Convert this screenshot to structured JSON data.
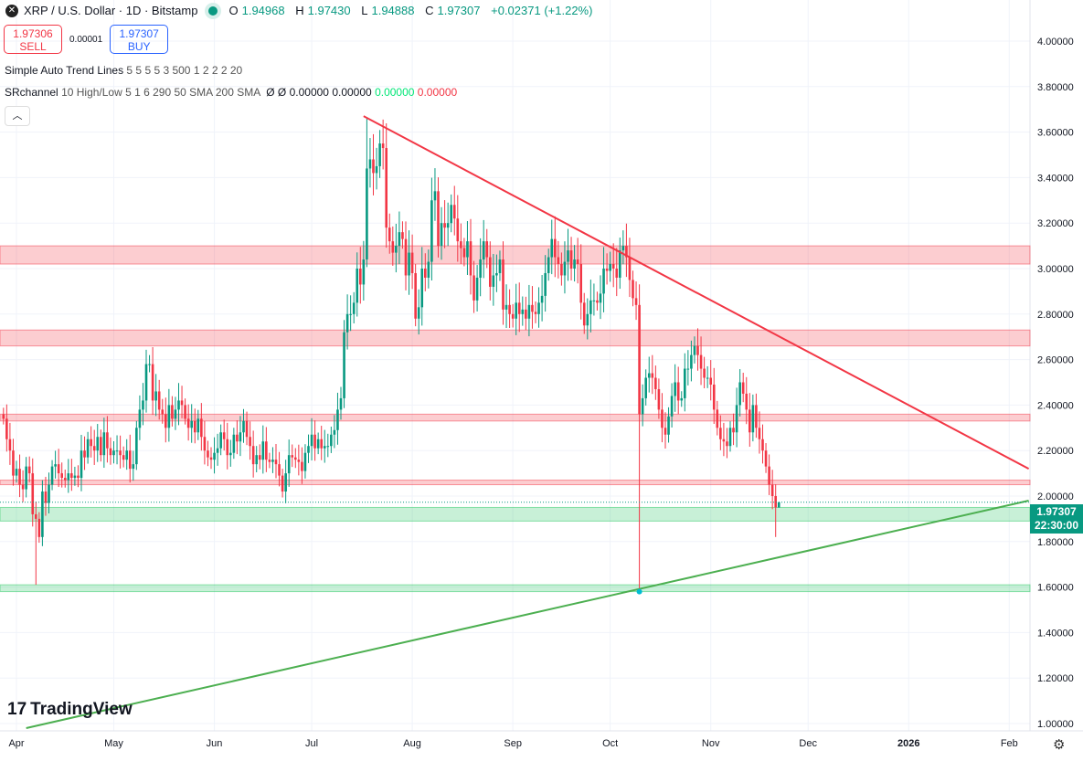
{
  "header": {
    "symbol": "XRP / U.S. Dollar · 1D · Bitstamp",
    "o_label": "O",
    "o": "1.94968",
    "h_label": "H",
    "h": "1.97430",
    "l_label": "L",
    "l": "1.94888",
    "c_label": "C",
    "c": "1.97307",
    "change": "+0.02371 (+1.22%)"
  },
  "trade": {
    "sell_price": "1.97306",
    "sell_label": "SELL",
    "spread": "0.00001",
    "buy_price": "1.97307",
    "buy_label": "BUY"
  },
  "indicators": [
    {
      "name": "Simple Auto Trend Lines",
      "params": "5 5 5 5 3 500 1 2 2 2 20"
    },
    {
      "name": "SRchannel",
      "params": "10 High/Low 5 1 6 290 50 SMA 200 SMA",
      "v1": "Ø",
      "v2": "Ø",
      "v3": "0.00000",
      "v4": "0.00000",
      "v5": "0.00000",
      "v6": "0.00000"
    }
  ],
  "branding": "TradingView",
  "last_price": {
    "price": "1.97307",
    "countdown": "22:30:00"
  },
  "colors": {
    "up": "#089981",
    "down": "#F23645",
    "resistance_zone": "#F23645",
    "support_zone": "#22c55e",
    "red_trendline": "#F23645",
    "green_trendline": "#4caf50"
  },
  "chart_data": {
    "type": "candlestick",
    "price_ticks": [
      "4.00000",
      "3.80000",
      "3.60000",
      "3.40000",
      "3.20000",
      "3.00000",
      "2.80000",
      "2.60000",
      "2.40000",
      "2.20000",
      "2.00000",
      "1.80000",
      "1.60000",
      "1.40000",
      "1.20000",
      "1.00000"
    ],
    "ylim": [
      1.0,
      4.0
    ],
    "time_ticks": [
      {
        "label": "Apr",
        "date": "2025-04-01"
      },
      {
        "label": "May",
        "date": "2025-05-01"
      },
      {
        "label": "Jun",
        "date": "2025-06-01"
      },
      {
        "label": "Jul",
        "date": "2025-07-01"
      },
      {
        "label": "Aug",
        "date": "2025-08-01"
      },
      {
        "label": "Sep",
        "date": "2025-09-01"
      },
      {
        "label": "Oct",
        "date": "2025-10-01"
      },
      {
        "label": "Nov",
        "date": "2025-11-01"
      },
      {
        "label": "Dec",
        "date": "2025-12-01"
      },
      {
        "label": "2026",
        "date": "2026-01-01"
      },
      {
        "label": "Feb",
        "date": "2026-02-01"
      }
    ],
    "xlim": [
      "2025-03-27",
      "2026-02-07"
    ],
    "first_date": "2025-03-28",
    "closes": [
      2.34,
      2.25,
      2.2,
      2.09,
      2.12,
      2.05,
      2.03,
      2.13,
      2.1,
      1.92,
      1.9,
      1.82,
      2.02,
      1.97,
      2.05,
      2.13,
      2.14,
      2.1,
      2.08,
      2.07,
      2.1,
      2.08,
      2.09,
      2.08,
      2.2,
      2.17,
      2.25,
      2.22,
      2.2,
      2.26,
      2.18,
      2.28,
      2.21,
      2.18,
      2.2,
      2.2,
      2.18,
      2.16,
      2.2,
      2.12,
      2.14,
      2.3,
      2.38,
      2.42,
      2.58,
      2.58,
      2.42,
      2.46,
      2.38,
      2.36,
      2.3,
      2.4,
      2.34,
      2.38,
      2.42,
      2.4,
      2.34,
      2.3,
      2.33,
      2.28,
      2.34,
      2.26,
      2.2,
      2.17,
      2.16,
      2.19,
      2.21,
      2.28,
      2.25,
      2.18,
      2.19,
      2.27,
      2.24,
      2.28,
      2.33,
      2.26,
      2.22,
      2.14,
      2.18,
      2.16,
      2.24,
      2.16,
      2.15,
      2.16,
      2.14,
      2.09,
      2.02,
      2.1,
      2.18,
      2.17,
      2.16,
      2.15,
      2.11,
      2.19,
      2.22,
      2.27,
      2.21,
      2.25,
      2.21,
      2.22,
      2.22,
      2.27,
      2.29,
      2.38,
      2.43,
      2.72,
      2.8,
      2.8,
      2.85,
      3.0,
      2.93,
      3.04,
      3.44,
      3.48,
      3.42,
      3.45,
      3.55,
      3.53,
      3.18,
      3.12,
      3.07,
      3.1,
      3.16,
      3.13,
      2.97,
      3.07,
      2.98,
      2.78,
      2.83,
      3.0,
      2.96,
      3.03,
      3.3,
      3.34,
      3.1,
      3.2,
      3.18,
      3.2,
      3.28,
      3.22,
      3.12,
      3.09,
      3.05,
      3.12,
      2.97,
      2.86,
      2.96,
      3.04,
      3.12,
      3.05,
      2.92,
      2.97,
      2.98,
      3.04,
      2.82,
      2.84,
      2.8,
      2.78,
      2.85,
      2.8,
      2.82,
      2.78,
      2.84,
      2.81,
      2.8,
      2.85,
      2.88,
      2.98,
      3.05,
      3.13,
      3.05,
      3.02,
      2.97,
      3.03,
      3.08,
      3.0,
      3.04,
      3.02,
      2.85,
      2.75,
      2.8,
      2.86,
      2.86,
      2.85,
      2.89,
      3.0,
      2.99,
      3.02,
      3.0,
      2.96,
      3.08,
      3.1,
      3.05,
      2.95,
      2.87,
      2.84,
      2.36,
      2.43,
      2.52,
      2.54,
      2.52,
      2.47,
      2.38,
      2.3,
      2.27,
      2.35,
      2.44,
      2.5,
      2.42,
      2.43,
      2.56,
      2.56,
      2.62,
      2.66,
      2.62,
      2.56,
      2.52,
      2.52,
      2.49,
      2.38,
      2.3,
      2.25,
      2.24,
      2.22,
      2.3,
      2.28,
      2.4,
      2.5,
      2.45,
      2.38,
      2.28,
      2.4,
      2.3,
      2.25,
      2.2,
      2.13,
      2.05,
      2.0,
      1.95,
      1.97307
    ],
    "notable_extremes": [
      {
        "date": "2025-04-07",
        "low": 1.61
      },
      {
        "date": "2025-07-18",
        "high": 3.66
      },
      {
        "date": "2025-10-10",
        "low": 1.58
      },
      {
        "date": "2025-11-21",
        "low": 1.82
      }
    ],
    "last_candle": {
      "open": 1.94968,
      "high": 1.9743,
      "low": 1.94888,
      "close": 1.97307
    },
    "resistance_zones": [
      [
        3.02,
        3.1
      ],
      [
        2.66,
        2.73
      ],
      [
        2.33,
        2.36
      ],
      [
        2.05,
        2.07
      ]
    ],
    "support_zones": [
      [
        1.89,
        1.95
      ],
      [
        1.58,
        1.61
      ]
    ],
    "trendlines": [
      {
        "color": "red",
        "from": [
          "2025-07-17",
          3.67
        ],
        "to": [
          "2026-02-07",
          2.12
        ]
      },
      {
        "color": "green",
        "from": [
          "2025-04-04",
          0.98
        ],
        "to": [
          "2026-02-07",
          1.98
        ]
      }
    ],
    "marker": {
      "date": "2025-10-10",
      "price": 1.58
    }
  }
}
